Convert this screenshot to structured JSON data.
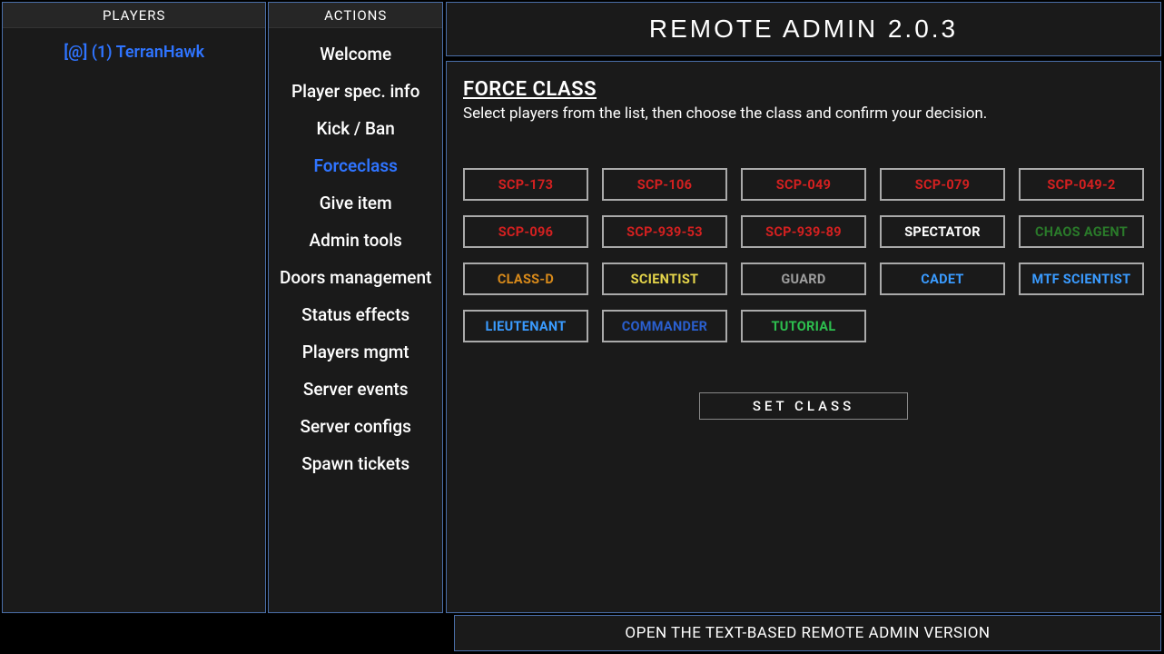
{
  "colors": {
    "accent_blue": "#2f74ff",
    "border_blue": "#4a6ea8",
    "bg_dark": "#1a1a1a",
    "bg_darker": "#262626"
  },
  "players": {
    "header": "PLAYERS",
    "items": [
      {
        "label": "[@] (1) TerranHawk"
      }
    ]
  },
  "actions": {
    "header": "ACTIONS",
    "items": [
      {
        "label": "Welcome",
        "selected": false
      },
      {
        "label": "Player spec. info",
        "selected": false
      },
      {
        "label": "Kick / Ban",
        "selected": false
      },
      {
        "label": "Forceclass",
        "selected": true
      },
      {
        "label": "Give item",
        "selected": false
      },
      {
        "label": "Admin tools",
        "selected": false
      },
      {
        "label": "Doors management",
        "selected": false
      },
      {
        "label": "Status effects",
        "selected": false
      },
      {
        "label": "Players mgmt",
        "selected": false
      },
      {
        "label": "Server events",
        "selected": false
      },
      {
        "label": "Server configs",
        "selected": false
      },
      {
        "label": "Spawn tickets",
        "selected": false
      }
    ]
  },
  "title": "REMOTE ADMIN 2.0.3",
  "force_class": {
    "title": "FORCE CLASS",
    "desc": "Select players from the list, then choose the class and confirm your decision.",
    "classes": [
      {
        "label": "SCP-173",
        "color": "#d32020"
      },
      {
        "label": "SCP-106",
        "color": "#d32020"
      },
      {
        "label": "SCP-049",
        "color": "#d32020"
      },
      {
        "label": "SCP-079",
        "color": "#d32020"
      },
      {
        "label": "SCP-049-2",
        "color": "#d32020"
      },
      {
        "label": "SCP-096",
        "color": "#d32020"
      },
      {
        "label": "SCP-939-53",
        "color": "#d32020"
      },
      {
        "label": "SCP-939-89",
        "color": "#d32020"
      },
      {
        "label": "SPECTATOR",
        "color": "#ffffff"
      },
      {
        "label": "CHAOS AGENT",
        "color": "#2a7a2a"
      },
      {
        "label": "CLASS-D",
        "color": "#d88a1a"
      },
      {
        "label": "SCIENTIST",
        "color": "#e5d54a"
      },
      {
        "label": "GUARD",
        "color": "#9e9e9e"
      },
      {
        "label": "CADET",
        "color": "#3a9bff"
      },
      {
        "label": "MTF SCIENTIST",
        "color": "#3a9bff"
      },
      {
        "label": "LIEUTENANT",
        "color": "#3a9bff"
      },
      {
        "label": "COMMANDER",
        "color": "#2a5fcf"
      },
      {
        "label": "TUTORIAL",
        "color": "#2dbf4e"
      }
    ],
    "confirm_label": "SET CLASS"
  },
  "footer": "OPEN THE TEXT-BASED REMOTE ADMIN VERSION"
}
